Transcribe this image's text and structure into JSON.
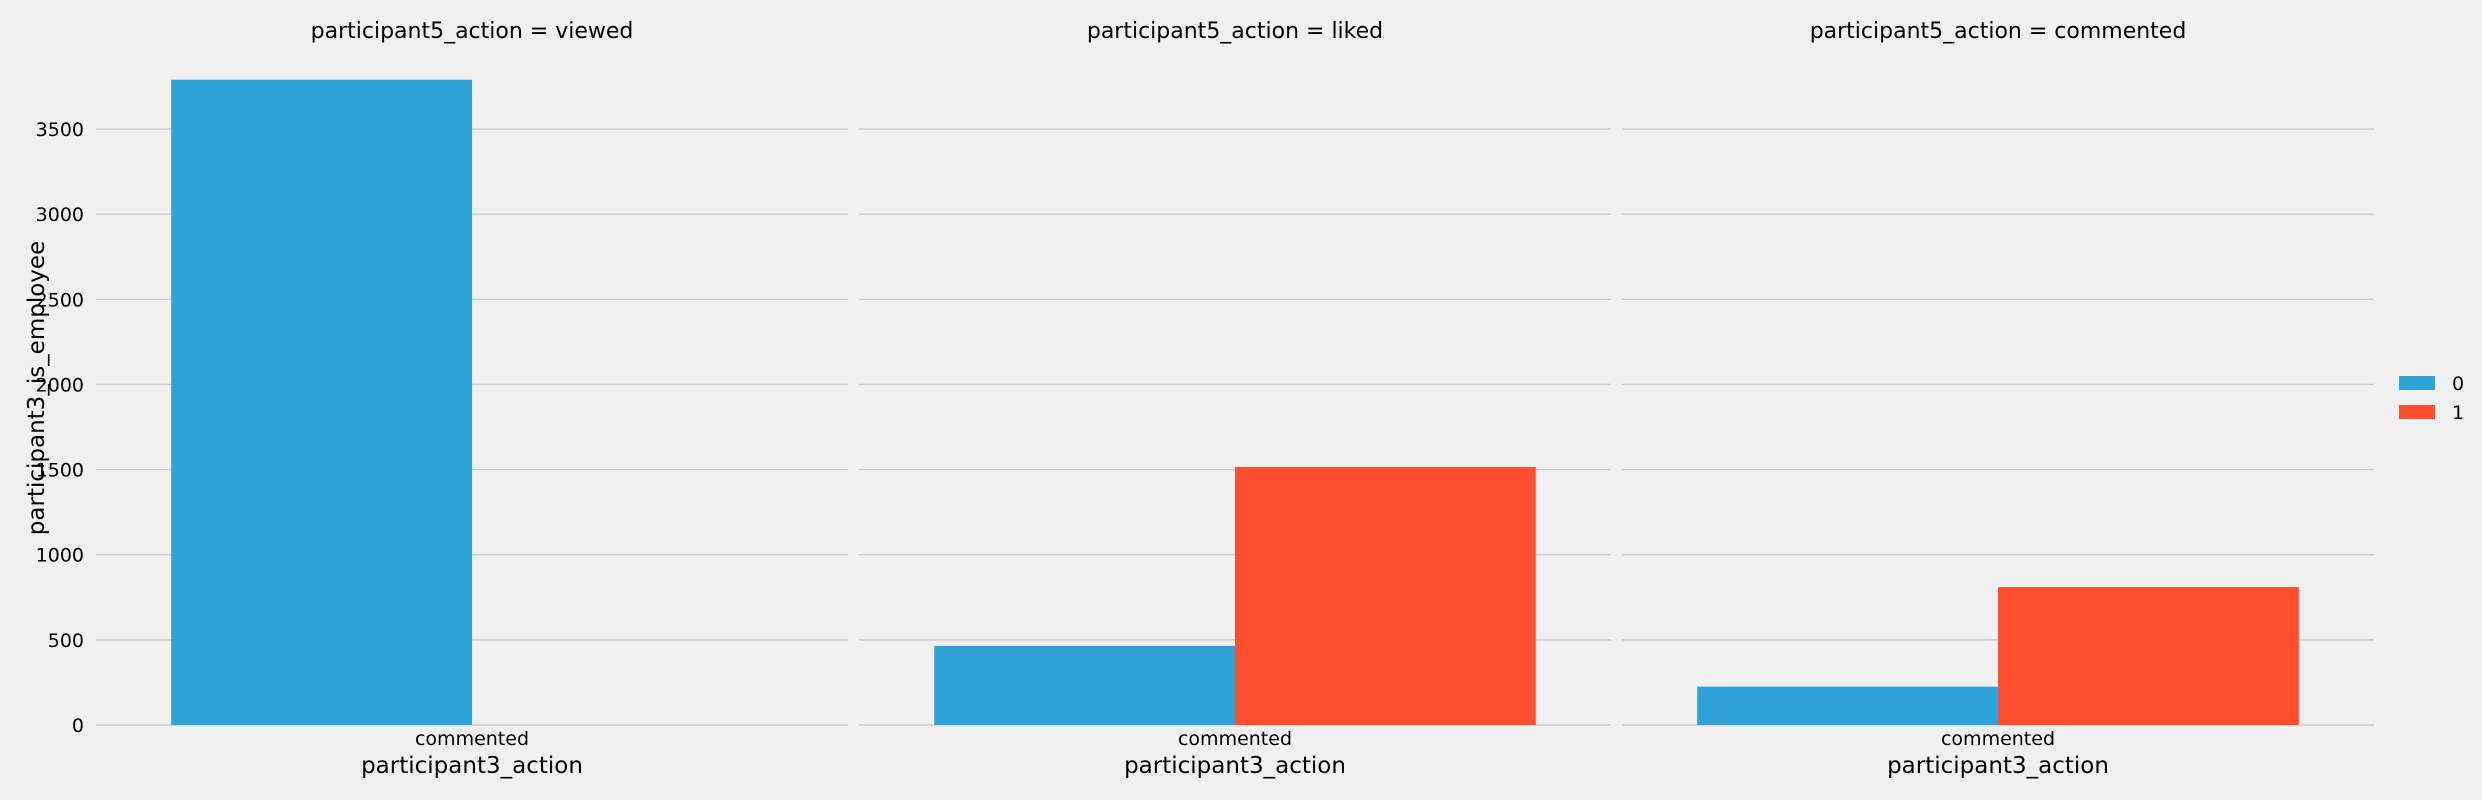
{
  "colors": {
    "background": "#f0f0f0",
    "grid": "#cbcbcb",
    "series_0": "#30a2da",
    "series_1": "#fc4f30"
  },
  "chart_data": {
    "type": "bar",
    "xlabel": "participant3_action",
    "ylabel": "participant3_is_employee",
    "ylim": [
      0,
      3800
    ],
    "yticks": [
      0,
      500,
      1000,
      1500,
      2000,
      2500,
      3000,
      3500
    ],
    "ytick_labels": [
      "0",
      "500",
      "1000",
      "1500",
      "2000",
      "2500",
      "3000",
      "3500"
    ],
    "grid": true,
    "legend": {
      "placement": "right",
      "entries": [
        "0",
        "1"
      ]
    },
    "panels": [
      {
        "title": "participant5_action = viewed",
        "categories": [
          "commented"
        ],
        "series": [
          {
            "name": "0",
            "values": [
              3790
            ]
          },
          {
            "name": "1",
            "values": [
              null
            ]
          }
        ]
      },
      {
        "title": "participant5_action = liked",
        "categories": [
          "commented"
        ],
        "series": [
          {
            "name": "0",
            "values": [
              465
            ]
          },
          {
            "name": "1",
            "values": [
              1515
            ]
          }
        ]
      },
      {
        "title": "participant5_action = commented",
        "categories": [
          "commented"
        ],
        "series": [
          {
            "name": "0",
            "values": [
              225
            ]
          },
          {
            "name": "1",
            "values": [
              810
            ]
          }
        ]
      }
    ]
  }
}
